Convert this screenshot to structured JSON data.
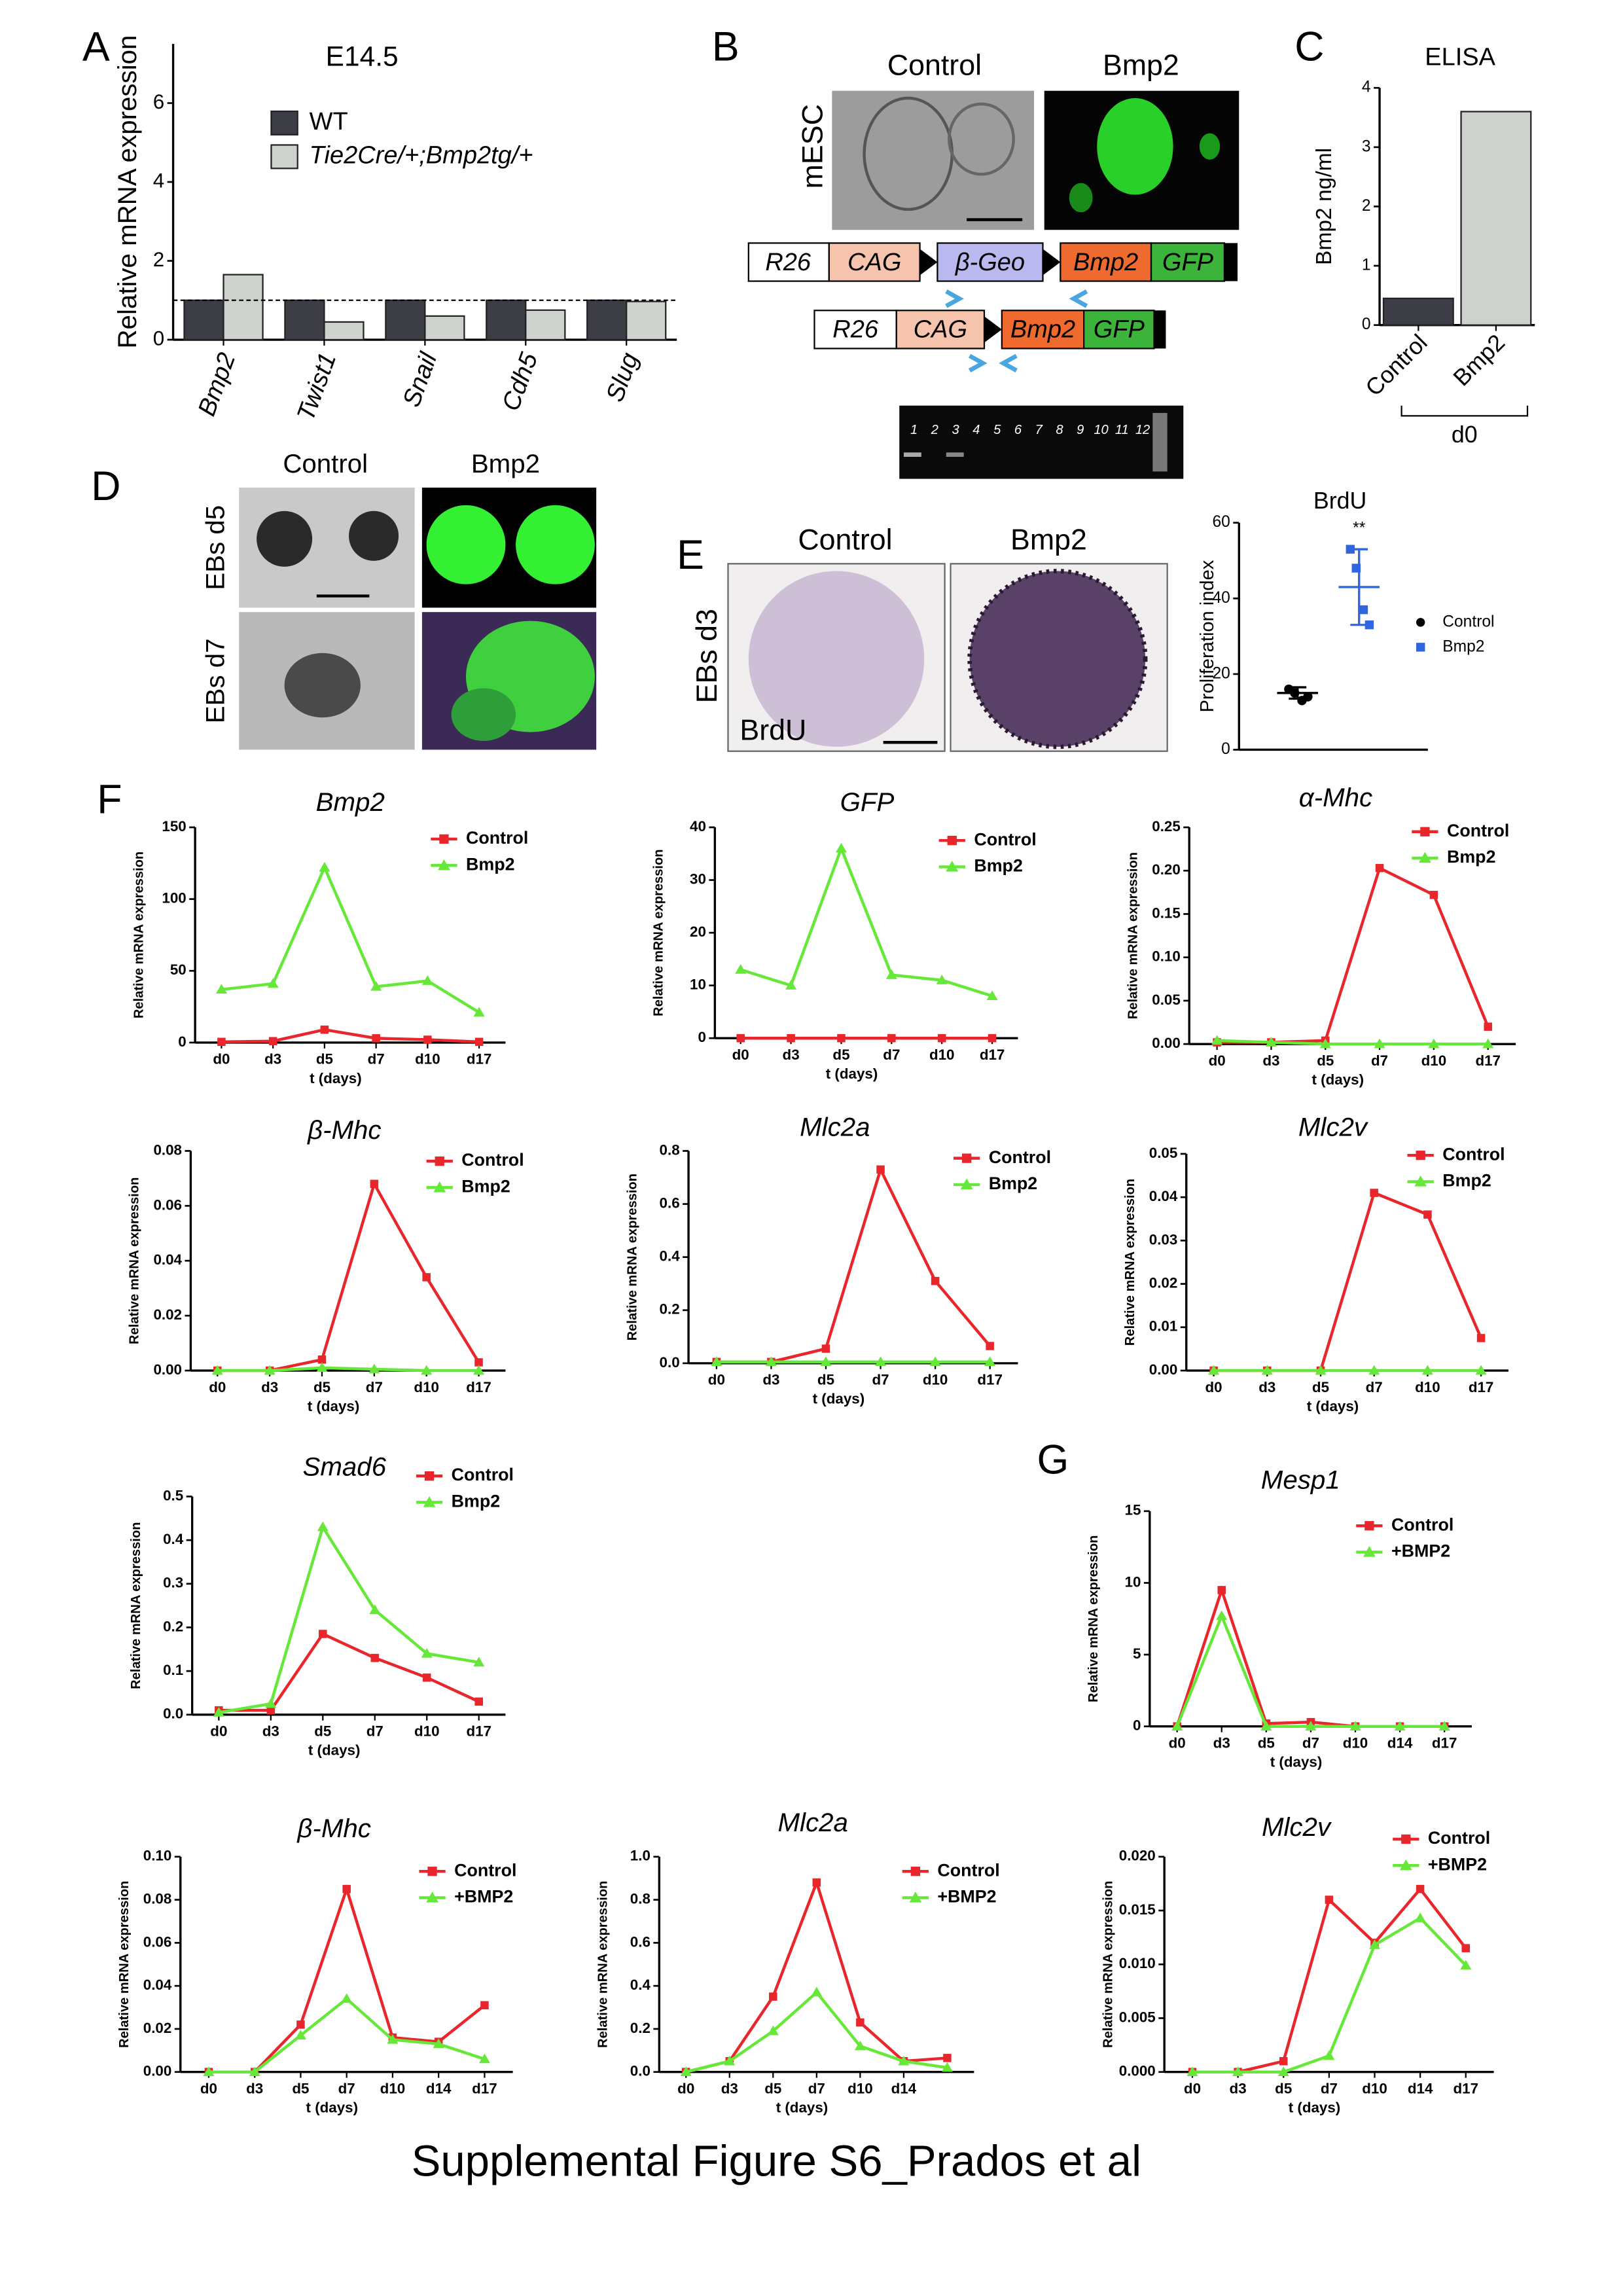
{
  "figure": {
    "caption": "Supplemental Figure S6_Prados et al",
    "panel_labels": [
      "A",
      "B",
      "C",
      "D",
      "E",
      "F",
      "G"
    ],
    "B": {
      "columns": [
        "Control",
        "Bmp2"
      ],
      "row": "mESC",
      "construct1": [
        "R26",
        "CAG",
        "β-Geo",
        "Bmp2",
        "GFP"
      ],
      "construct2": [
        "R26",
        "CAG",
        "Bmp2",
        "GFP"
      ],
      "lanes": [
        "1",
        "2",
        "3",
        "4",
        "5",
        "6",
        "7",
        "8",
        "9",
        "10",
        "11",
        "12"
      ]
    },
    "D": {
      "columns": [
        "Control",
        "Bmp2"
      ],
      "rows": [
        "EBs d5",
        "EBs d7"
      ]
    },
    "E": {
      "columns": [
        "Control",
        "Bmp2"
      ],
      "row": "EBs d3",
      "stain": "BrdU"
    }
  },
  "chart_data": [
    {
      "type": "bar",
      "title": "E14.5",
      "y_label": "Relative mRNA expression",
      "categories": [
        "Bmp2",
        "Twist1",
        "Snail",
        "Cdh5",
        "Slug"
      ],
      "series": [
        {
          "name": "WT",
          "color": "#3d3d45",
          "values": [
            1,
            1,
            1,
            1,
            1
          ]
        },
        {
          "name": "Tie2Cre/+;Bmp2tg/+",
          "color": "#cdd2cd",
          "values": [
            1.65,
            0.45,
            0.6,
            0.75,
            0.97
          ]
        }
      ],
      "reference_line": 1,
      "ylim": [
        0,
        7.5
      ],
      "yticks": [
        0,
        2,
        4,
        6
      ]
    },
    {
      "type": "bar",
      "title": "ELISA",
      "y_label": "Bmp2 ng/ml",
      "categories": [
        "Control",
        "Bmp2"
      ],
      "values": [
        0.45,
        3.6
      ],
      "colors": [
        "#3d3d45",
        "#cdd2cd"
      ],
      "group_label": "d0",
      "ylim": [
        0,
        4
      ],
      "yticks": [
        0,
        1,
        2,
        3,
        4
      ]
    },
    {
      "type": "scatter",
      "title": "BrdU",
      "y_label": "Proliferation index",
      "annotation": "**",
      "series": [
        {
          "name": "Control",
          "color": "#000000",
          "values": [
            16,
            15,
            13,
            14
          ],
          "mean": 15,
          "sd": 1.5
        },
        {
          "name": "Bmp2",
          "color": "#2f66e0",
          "values": [
            53,
            48,
            37,
            33
          ],
          "mean": 43,
          "sd": 10
        }
      ],
      "ylim": [
        0,
        60
      ],
      "yticks": [
        0,
        20,
        40,
        60
      ]
    },
    {
      "type": "line",
      "title": "Bmp2",
      "x_label": "t (days)",
      "y_label": "Relative mRNA  expression",
      "categories": [
        "d0",
        "d3",
        "d5",
        "d7",
        "d10",
        "d17"
      ],
      "series": [
        {
          "name": "Control",
          "color": "#e8262b",
          "marker": "square",
          "values": [
            0.5,
            1,
            9,
            3,
            2,
            0.5
          ]
        },
        {
          "name": "Bmp2",
          "color": "#66e838",
          "marker": "triangle",
          "values": [
            37,
            41,
            122,
            39,
            43,
            21
          ]
        }
      ],
      "ylim": [
        0,
        150
      ],
      "yticks": [
        0,
        50,
        100,
        150
      ]
    },
    {
      "type": "line",
      "title": "GFP",
      "x_label": "t (days)",
      "y_label": "Relative mRNA  expression",
      "categories": [
        "d0",
        "d3",
        "d5",
        "d7",
        "d10",
        "d17"
      ],
      "series": [
        {
          "name": "Control",
          "color": "#e8262b",
          "marker": "square",
          "values": [
            0,
            0,
            0,
            0,
            0,
            0
          ]
        },
        {
          "name": "Bmp2",
          "color": "#66e838",
          "marker": "triangle",
          "values": [
            13,
            10,
            36,
            12,
            11,
            8
          ]
        }
      ],
      "ylim": [
        0,
        40
      ],
      "yticks": [
        0,
        10,
        20,
        30,
        40
      ]
    },
    {
      "type": "line",
      "title": "α-Mhc",
      "x_label": "t (days)",
      "y_label": "Relative mRNA  expression",
      "categories": [
        "d0",
        "d3",
        "d5",
        "d7",
        "d10",
        "d17"
      ],
      "series": [
        {
          "name": "Control",
          "color": "#e8262b",
          "marker": "square",
          "values": [
            0.002,
            0.002,
            0.004,
            0.203,
            0.172,
            0.02
          ]
        },
        {
          "name": "Bmp2",
          "color": "#66e838",
          "marker": "triangle",
          "values": [
            0.004,
            0.002,
            0,
            0,
            0,
            0
          ]
        }
      ],
      "ylim": [
        0,
        0.25
      ],
      "yticks": [
        {
          "value": 0,
          "label": "0.00"
        },
        0.05,
        {
          "value": 0.1,
          "label": "0.10"
        },
        0.15,
        {
          "value": 0.2,
          "label": "0.20"
        },
        0.25
      ]
    },
    {
      "type": "line",
      "title": "β-Mhc",
      "x_label": "t (days)",
      "y_label": "Relative mRNA  expression",
      "categories": [
        "d0",
        "d3",
        "d5",
        "d7",
        "d10",
        "d17"
      ],
      "series": [
        {
          "name": "Control",
          "color": "#e8262b",
          "marker": "square",
          "values": [
            0,
            0,
            0.004,
            0.068,
            0.034,
            0.003
          ]
        },
        {
          "name": "Bmp2",
          "color": "#66e838",
          "marker": "triangle",
          "values": [
            0,
            0,
            0.001,
            0.0005,
            0,
            0
          ]
        }
      ],
      "ylim": [
        0,
        0.08
      ],
      "yticks": [
        {
          "value": 0,
          "label": "0.00"
        },
        0.02,
        0.04,
        0.06,
        0.08
      ]
    },
    {
      "type": "line",
      "title": "Mlc2a",
      "x_label": "t (days)",
      "y_label": "Relative mRNA  expression",
      "categories": [
        "d0",
        "d3",
        "d5",
        "d7",
        "d10",
        "d17"
      ],
      "series": [
        {
          "name": "Control",
          "color": "#e8262b",
          "marker": "square",
          "values": [
            0.005,
            0.005,
            0.055,
            0.73,
            0.31,
            0.065
          ]
        },
        {
          "name": "Bmp2",
          "color": "#66e838",
          "marker": "triangle",
          "values": [
            0.005,
            0.005,
            0.005,
            0.005,
            0.005,
            0.005
          ]
        }
      ],
      "ylim": [
        0,
        0.8
      ],
      "yticks": [
        {
          "value": 0,
          "label": "0.0"
        },
        0.2,
        0.4,
        0.6,
        0.8
      ]
    },
    {
      "type": "line",
      "title": "Mlc2v",
      "x_label": "t (days)",
      "y_label": "Relative mRNA  expression",
      "categories": [
        "d0",
        "d3",
        "d5",
        "d7",
        "d10",
        "d17"
      ],
      "series": [
        {
          "name": "Control",
          "color": "#e8262b",
          "marker": "square",
          "values": [
            0,
            0,
            0,
            0.041,
            0.036,
            0.0075
          ]
        },
        {
          "name": "Bmp2",
          "color": "#66e838",
          "marker": "triangle",
          "values": [
            0,
            0,
            0,
            0,
            0,
            0
          ]
        }
      ],
      "ylim": [
        0,
        0.05
      ],
      "yticks": [
        {
          "value": 0,
          "label": "0.00"
        },
        0.01,
        0.02,
        0.03,
        0.04,
        0.05
      ]
    },
    {
      "type": "line",
      "title": "Smad6",
      "x_label": "t (days)",
      "y_label": "Relative mRNA  expression",
      "categories": [
        "d0",
        "d3",
        "d5",
        "d7",
        "d10",
        "d17"
      ],
      "series": [
        {
          "name": "Control",
          "color": "#e8262b",
          "marker": "square",
          "values": [
            0.01,
            0.01,
            0.185,
            0.13,
            0.085,
            0.03
          ]
        },
        {
          "name": "Bmp2",
          "color": "#66e838",
          "marker": "triangle",
          "values": [
            0.005,
            0.025,
            0.43,
            0.24,
            0.14,
            0.12
          ]
        }
      ],
      "ylim": [
        0,
        0.5
      ],
      "yticks": [
        {
          "value": 0,
          "label": "0.0"
        },
        0.1,
        0.2,
        0.3,
        0.4,
        0.5
      ]
    },
    {
      "type": "line",
      "title": "Mesp1",
      "x_label": "t (days)",
      "y_label": "Relative mRNA  expression",
      "categories": [
        "d0",
        "d3",
        "d5",
        "d7",
        "d10",
        "d14",
        "d17"
      ],
      "series": [
        {
          "name": "Control",
          "color": "#e8262b",
          "marker": "square",
          "values": [
            0,
            9.5,
            0.2,
            0.3,
            0,
            0,
            0
          ]
        },
        {
          "name": "+BMP2",
          "color": "#66e838",
          "marker": "triangle",
          "values": [
            0,
            7.7,
            0,
            0,
            0,
            0,
            0
          ]
        }
      ],
      "ylim": [
        0,
        15
      ],
      "yticks": [
        0,
        5,
        10,
        15
      ]
    },
    {
      "type": "line",
      "title": "β-Mhc",
      "x_label": "t (days)",
      "y_label": "Relative mRNA  expression",
      "categories": [
        "d0",
        "d3",
        "d5",
        "d7",
        "d10",
        "d14",
        "d17"
      ],
      "series": [
        {
          "name": "Control",
          "color": "#e8262b",
          "marker": "square",
          "values": [
            0,
            0,
            0.022,
            0.085,
            0.016,
            0.014,
            0.031
          ]
        },
        {
          "name": "+BMP2",
          "color": "#66e838",
          "marker": "triangle",
          "values": [
            0,
            0,
            0.017,
            0.034,
            0.015,
            0.013,
            0.006
          ]
        }
      ],
      "ylim": [
        0,
        0.1
      ],
      "yticks": [
        {
          "value": 0,
          "label": "0.00"
        },
        0.02,
        0.04,
        0.06,
        0.08,
        {
          "value": 0.1,
          "label": "0.10"
        }
      ]
    },
    {
      "type": "line",
      "title": "Mlc2a",
      "x_label": "t (days)",
      "y_label": "Relative mRNA  expression",
      "categories": [
        "d0",
        "d3",
        "d5",
        "d7",
        "d10",
        "d14",
        null
      ],
      "series": [
        {
          "name": "Control",
          "color": "#e8262b",
          "marker": "square",
          "values": [
            0,
            0.05,
            0.35,
            0.88,
            0.23,
            0.05,
            0.065
          ]
        },
        {
          "name": "+BMP2",
          "color": "#66e838",
          "marker": "triangle",
          "values": [
            0,
            0.05,
            0.19,
            0.37,
            0.12,
            0.05,
            0.02
          ]
        }
      ],
      "ylim": [
        0,
        1
      ],
      "yticks": [
        {
          "value": 0,
          "label": "0.0"
        },
        0.2,
        0.4,
        0.6,
        0.8,
        {
          "value": 1,
          "label": "1.0"
        }
      ]
    },
    {
      "type": "line",
      "title": "Mlc2v",
      "x_label": "t (days)",
      "y_label": "Relative mRNA  expression",
      "categories": [
        "d0",
        "d3",
        "d5",
        "d7",
        "d10",
        "d14",
        "d17"
      ],
      "series": [
        {
          "name": "Control",
          "color": "#e8262b",
          "marker": "square",
          "values": [
            0,
            0,
            0.001,
            0.016,
            0.012,
            0.017,
            0.0115
          ]
        },
        {
          "name": "+BMP2",
          "color": "#66e838",
          "marker": "triangle",
          "values": [
            0,
            0,
            0,
            0.0015,
            0.0118,
            0.0143,
            0.0099
          ]
        }
      ],
      "ylim": [
        0,
        0.02
      ],
      "yticks": [
        {
          "value": 0,
          "label": "0.000"
        },
        0.005,
        {
          "value": 0.01,
          "label": "0.010"
        },
        0.015,
        {
          "value": 0.02,
          "label": "0.020"
        }
      ]
    }
  ]
}
